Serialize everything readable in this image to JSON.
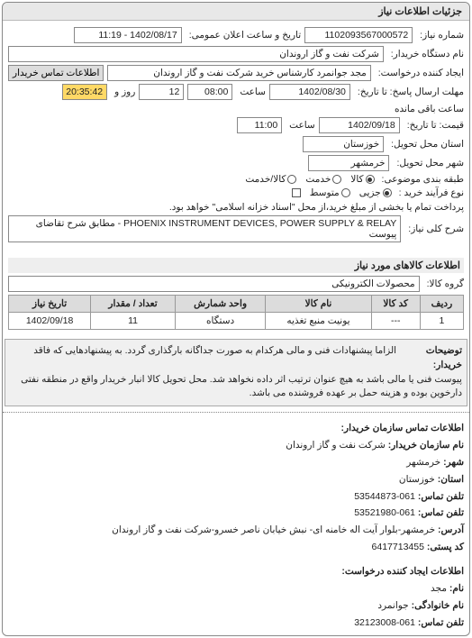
{
  "panel_title": "جزئیات اطلاعات نیاز",
  "group1": {
    "f1": {
      "lbl": "شماره نیاز:",
      "val": "1102093567000572"
    },
    "f2": {
      "lbl": "تاریخ و ساعت اعلان عمومی:",
      "val": "1402/08/17 - 11:19"
    },
    "f3": {
      "lbl": "نام دستگاه خریدار:",
      "val": "شرکت نفت و گاز اروندان"
    },
    "f4": {
      "lbl": "ایجاد کننده درخواست:",
      "val": "مجد جوانمرد کارشناس خرید شرکت نفت و گاز اروندان"
    },
    "f4btn": "اطلاعات تماس خریدار",
    "line5": {
      "a": {
        "lbl": "مهلت ارسال پاسخ: تا تاریخ:",
        "val": "1402/08/30"
      },
      "b": {
        "lbl": "ساعت",
        "val": "08:00"
      },
      "c": {
        "val": "12",
        "suf": "روز و"
      },
      "d": {
        "val": "20:35:42",
        "suf": "ساعت باقی مانده"
      }
    },
    "line6": {
      "a": {
        "lbl": "قیمت: تا تاریخ:",
        "val": "1402/09/18"
      },
      "b": {
        "lbl": "ساعت",
        "val": "11:00"
      }
    },
    "f7": {
      "lbl": "استان محل تحویل:",
      "val": "خوزستان"
    },
    "f8": {
      "lbl": "شهر محل تحویل:",
      "val": "خرمشهر"
    },
    "f9": {
      "lbl": "طبقه بندی موضوعی:",
      "opts": [
        {
          "t": "کالا",
          "c": true
        },
        {
          "t": "خدمت",
          "c": false
        },
        {
          "t": "کالا/خدمت",
          "c": false
        }
      ]
    },
    "f10": {
      "lbl": "نوع فرآیند خرید :",
      "opts": [
        {
          "t": "جزیی",
          "c": true
        },
        {
          "t": "متوسط",
          "c": false
        }
      ],
      "note": "پرداخت تمام یا بخشی از مبلغ خرید،از محل \"اسناد خزانه اسلامی\" خواهد بود."
    },
    "f11": {
      "lbl": "شرح کلی نیاز:",
      "val": "PHOENIX INSTRUMENT DEVICES, POWER SUPPLY & RELAY - مطابق شرح تقاضای پیوست"
    }
  },
  "goods": {
    "title": "اطلاعات کالاهای مورد نیاز",
    "group_lbl": "گروه کالا:",
    "group_val": "محصولات الکترونیکی",
    "headers": [
      "ردیف",
      "کد کالا",
      "نام کالا",
      "واحد شمارش",
      "تعداد / مقدار",
      "تاریخ نیاز"
    ],
    "row": [
      "1",
      "---",
      "یونیت منبع تغذیه",
      "دستگاه",
      "11",
      "1402/09/18"
    ]
  },
  "notice": {
    "lbl": "توضیحات خریدار:",
    "text": "الزاما پیشنهادات فنی و مالی هرکدام به صورت جداگانه بارگذاری گردد. به پیشنهادهایی که فاقد پیوست فنی یا مالی باشد به هیچ عنوان ترتیب اثر داده نخواهد شد. محل تحویل کالا انبار خریدار واقع در منطقه نفتی دارخوین بوده و هزینه حمل بر عهده فروشنده می باشد."
  },
  "contact1": {
    "title": "اطلاعات تماس سازمان خریدار:",
    "rows": [
      {
        "l": "نام سازمان خریدار:",
        "v": "شرکت نفت و گاز اروندان"
      },
      {
        "l": "شهر:",
        "v": "خرمشهر"
      },
      {
        "l": "استان:",
        "v": "خوزستان"
      },
      {
        "l": "تلفن تماس:",
        "v": "061-53544873"
      },
      {
        "l": "تلفن تماس:",
        "v": "061-53521980"
      },
      {
        "l": "آدرس:",
        "v": "خرمشهر-بلوار آیت اله خامنه ای- نبش خیابان ناصر خسرو-شرکت نفت و گاز اروندان"
      },
      {
        "l": "کد پستی:",
        "v": "6417713455"
      }
    ]
  },
  "contact2": {
    "title": "اطلاعات ایجاد کننده درخواست:",
    "rows": [
      {
        "l": "نام:",
        "v": "مجد"
      },
      {
        "l": "نام خانوادگی:",
        "v": "جوانمرد"
      },
      {
        "l": "تلفن تماس:",
        "v": "061-32123008"
      }
    ]
  }
}
